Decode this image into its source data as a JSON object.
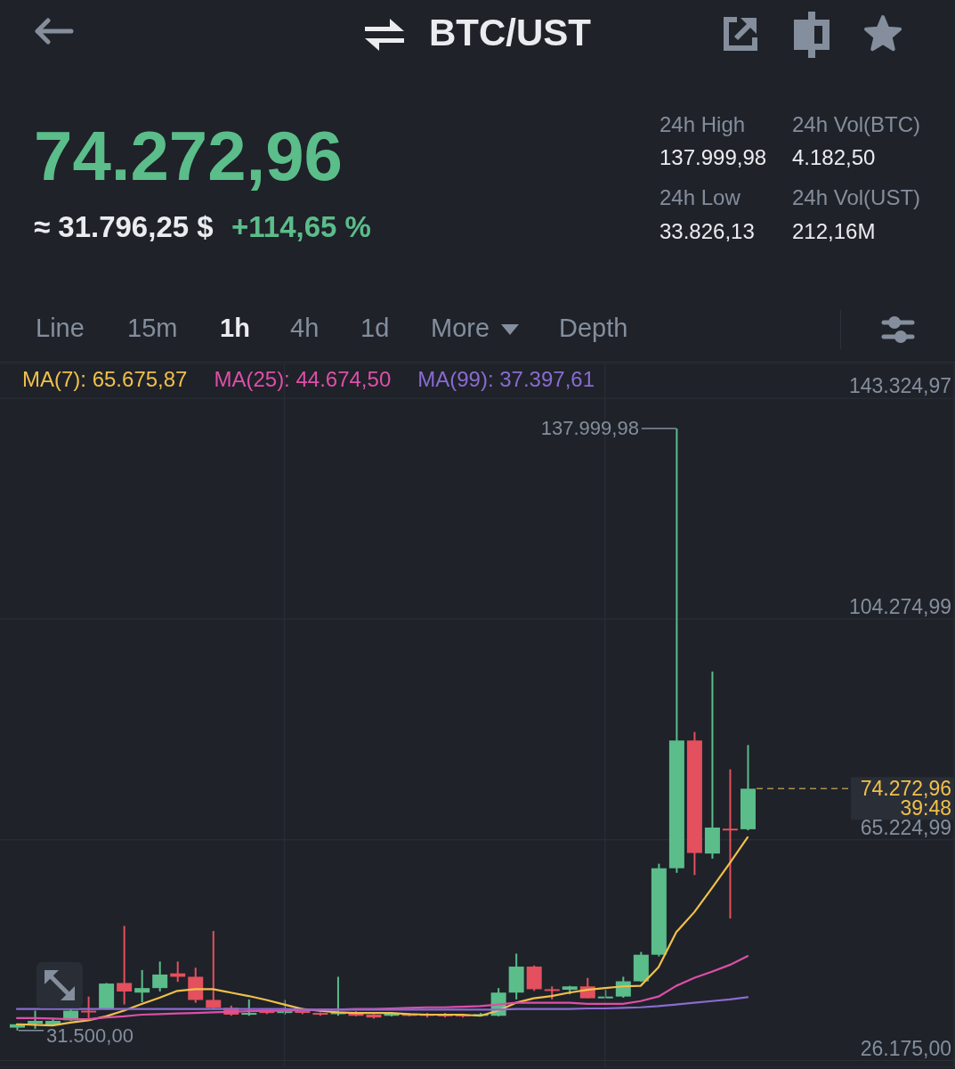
{
  "chart_data": {
    "type": "candlestick",
    "title": "BTC/UST",
    "annotations": [
      "74.272,96",
      "≈ 31.796,25 $",
      "+114,65 %",
      "24h High",
      "137.999,98",
      "24h Vol(BTC)",
      "4.182,50",
      "24h Low",
      "33.826,13",
      "24h Vol(UST)",
      "212,16M",
      "Line",
      "15m",
      "1h",
      "4h",
      "1d",
      "More",
      "Depth",
      "74.272,96",
      "39:48",
      "137.999,98",
      "31.500,00"
    ],
    "categories": [
      null,
      null,
      null,
      null,
      null,
      null,
      null,
      null,
      null,
      null,
      null,
      null,
      null,
      null,
      null,
      null,
      null,
      null,
      null,
      null,
      null,
      null,
      null,
      null,
      null,
      null,
      null,
      null,
      null,
      null,
      null,
      null,
      null,
      null,
      null,
      null,
      null,
      null,
      null,
      null,
      null,
      null
    ],
    "ohlc": [
      [
        32000,
        32700,
        31500,
        32600
      ],
      [
        32700,
        35000,
        31800,
        33200
      ],
      [
        32400,
        33500,
        32300,
        33200
      ],
      [
        33300,
        35300,
        33200,
        35000
      ],
      [
        35000,
        37500,
        33700,
        34700
      ],
      [
        35300,
        39900,
        35200,
        39800
      ],
      [
        39900,
        50000,
        36100,
        38400
      ],
      [
        38200,
        42200,
        36500,
        39000
      ],
      [
        39000,
        43700,
        38400,
        41400
      ],
      [
        41600,
        43700,
        40100,
        41000
      ],
      [
        41000,
        42600,
        36400,
        36900
      ],
      [
        36900,
        49100,
        35300,
        35500
      ],
      [
        35500,
        35900,
        34100,
        34300
      ],
      [
        34300,
        37000,
        34100,
        34600
      ],
      [
        34900,
        35000,
        34400,
        34600
      ],
      [
        34600,
        36900,
        34300,
        34900
      ],
      [
        35300,
        35500,
        34400,
        34600
      ],
      [
        34600,
        34700,
        34100,
        34300
      ],
      [
        34400,
        41000,
        34100,
        34700
      ],
      [
        34600,
        34900,
        34000,
        34100
      ],
      [
        34300,
        34400,
        33600,
        33800
      ],
      [
        34100,
        34700,
        34000,
        34600
      ],
      [
        34400,
        34600,
        34000,
        34100
      ],
      [
        34400,
        34600,
        33800,
        34100
      ],
      [
        34400,
        34600,
        33800,
        34000
      ],
      [
        34300,
        34400,
        33800,
        34000
      ],
      [
        34100,
        34600,
        34000,
        34400
      ],
      [
        34100,
        39000,
        34000,
        38200
      ],
      [
        38200,
        45100,
        37000,
        42800
      ],
      [
        42800,
        43000,
        38500,
        38800
      ],
      [
        38800,
        39300,
        37000,
        38500
      ],
      [
        38700,
        39400,
        37900,
        39300
      ],
      [
        39300,
        40800,
        37200,
        37200
      ],
      [
        37300,
        38700,
        37300,
        37500
      ],
      [
        37500,
        41000,
        37300,
        40200
      ],
      [
        40200,
        45400,
        40100,
        44900
      ],
      [
        44900,
        61000,
        44600,
        60200
      ],
      [
        60200,
        137999.98,
        59400,
        82800
      ],
      [
        82800,
        84300,
        59000,
        62900
      ],
      [
        62800,
        95000,
        61900,
        67400
      ],
      [
        67200,
        77700,
        51300,
        66900
      ],
      [
        67100,
        82000,
        66900,
        74272.96
      ]
    ],
    "colors": [
      "#5bbd8a",
      "#5bbd8a",
      "#5bbd8a",
      "#5bbd8a",
      "#e4505e",
      "#5bbd8a",
      "#e4505e",
      "#5bbd8a",
      "#5bbd8a",
      "#e4505e",
      "#e4505e",
      "#e4505e",
      "#e4505e",
      "#5bbd8a",
      "#e4505e",
      "#5bbd8a",
      "#e4505e",
      "#e4505e",
      "#5bbd8a",
      "#e4505e",
      "#e4505e",
      "#5bbd8a",
      "#e4505e",
      "#e4505e",
      "#e4505e",
      "#e4505e",
      "#5bbd8a",
      "#5bbd8a",
      "#5bbd8a",
      "#e4505e",
      "#e4505e",
      "#5bbd8a",
      "#e4505e",
      "#5bbd8a",
      "#5bbd8a",
      "#5bbd8a",
      "#5bbd8a",
      "#5bbd8a",
      "#e4505e",
      "#5bbd8a",
      "#e4505e",
      "#5bbd8a"
    ],
    "series": [
      {
        "name": "MA(7): 65.675,87",
        "type": "line",
        "color": "#f0c04a",
        "values": [
          32600,
          32500,
          32400,
          32900,
          33300,
          34000,
          35000,
          36200,
          37300,
          38500,
          38800,
          38800,
          38200,
          37600,
          36900,
          36100,
          35300,
          35000,
          34700,
          34600,
          34600,
          34600,
          34400,
          34300,
          34300,
          34300,
          34100,
          35000,
          36400,
          37200,
          37600,
          38200,
          38700,
          39000,
          39300,
          39400,
          42700,
          48900,
          52400,
          56700,
          61100,
          65675.87
        ]
      },
      {
        "name": "MA(25): 44.674,50",
        "type": "line",
        "color": "#dd4fa8",
        "values": [
          33700,
          33700,
          33600,
          33500,
          33500,
          33800,
          34000,
          34300,
          34400,
          34500,
          34600,
          34700,
          34800,
          34900,
          35000,
          35000,
          35100,
          35200,
          35200,
          35300,
          35300,
          35400,
          35500,
          35600,
          35600,
          35700,
          35800,
          36100,
          36400,
          36400,
          36400,
          36400,
          36200,
          36200,
          36200,
          36700,
          37500,
          39400,
          40800,
          41900,
          43100,
          44674.5
        ]
      },
      {
        "name": "MA(99): 37.397,61",
        "type": "line",
        "color": "#8a6bd1",
        "values": [
          35300,
          35300,
          35300,
          35300,
          35300,
          35300,
          35300,
          35300,
          35300,
          35300,
          35300,
          35300,
          35300,
          35300,
          35300,
          35300,
          35200,
          35200,
          35200,
          35200,
          35200,
          35200,
          35200,
          35200,
          35200,
          35200,
          35200,
          35200,
          35300,
          35300,
          35300,
          35300,
          35400,
          35400,
          35500,
          35600,
          35800,
          36100,
          36400,
          36700,
          37000,
          37397.61
        ]
      }
    ],
    "ylim": [
      25000,
      149500
    ],
    "yticks": [
      {
        "value": 26175,
        "label": "26.175,00"
      },
      {
        "value": 65224.99,
        "label": "65.224,99"
      },
      {
        "value": 104274.99,
        "label": "104.274,99"
      },
      {
        "value": 143324.97,
        "label": "143.324,97"
      }
    ],
    "grid": true,
    "legend": "top left",
    "tick_labels": "y"
  }
}
